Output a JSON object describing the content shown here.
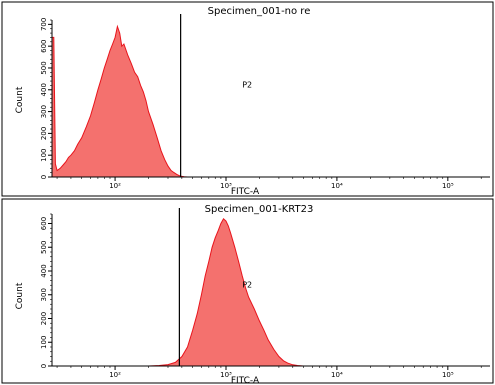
{
  "chart_data": [
    {
      "type": "area",
      "title": "Specimen_001-no re",
      "xlabel": "FITC-A",
      "ylabel": "Count",
      "xscale": "log",
      "xlim": [
        27,
        240000
      ],
      "ylim": [
        0,
        720
      ],
      "x_ticks": [
        {
          "value": 100,
          "label": "10²"
        },
        {
          "value": 1000,
          "label": "10³"
        },
        {
          "value": 10000,
          "label": "10⁴"
        },
        {
          "value": 100000,
          "label": "10⁵"
        }
      ],
      "y_ticks": [
        {
          "value": 0,
          "label": "0"
        },
        {
          "value": 100,
          "label": "100"
        },
        {
          "value": 200,
          "label": "200"
        },
        {
          "value": 300,
          "label": "300"
        },
        {
          "value": 400,
          "label": "400"
        },
        {
          "value": 500,
          "label": "500"
        },
        {
          "value": 600,
          "label": "600"
        },
        {
          "value": 700,
          "label": "700"
        }
      ],
      "gate": {
        "label": "P2",
        "x_start": 390,
        "label_x": 1400,
        "label_y": 410
      },
      "fill_color": "#f4716e",
      "edge_color": "#e8141c",
      "series": [
        {
          "x": [
            27,
            28,
            29,
            30,
            32,
            34,
            36,
            38,
            40,
            43,
            46,
            50,
            55,
            60,
            65,
            70,
            75,
            80,
            85,
            90,
            95,
            100,
            105,
            110,
            115,
            120,
            130,
            140,
            150,
            160,
            170,
            180,
            190,
            200,
            220,
            240,
            260,
            280,
            300,
            320,
            340,
            360,
            380,
            400,
            420,
            450
          ],
          "y": [
            640,
            640,
            60,
            30,
            40,
            55,
            70,
            90,
            100,
            120,
            150,
            180,
            230,
            280,
            340,
            400,
            450,
            500,
            540,
            580,
            610,
            640,
            690,
            660,
            600,
            610,
            560,
            520,
            480,
            460,
            420,
            390,
            350,
            300,
            240,
            180,
            120,
            80,
            50,
            30,
            20,
            12,
            6,
            3,
            1,
            0
          ]
        }
      ]
    },
    {
      "type": "area",
      "title": "Specimen_001-KRT23",
      "xlabel": "FITC-A",
      "ylabel": "Count",
      "xscale": "log",
      "xlim": [
        27,
        240000
      ],
      "ylim": [
        0,
        640
      ],
      "x_ticks": [
        {
          "value": 100,
          "label": "10²"
        },
        {
          "value": 1000,
          "label": "10³"
        },
        {
          "value": 10000,
          "label": "10⁴"
        },
        {
          "value": 100000,
          "label": "10⁵"
        }
      ],
      "y_ticks": [
        {
          "value": 0,
          "label": "0"
        },
        {
          "value": 100,
          "label": "100"
        },
        {
          "value": 200,
          "label": "200"
        },
        {
          "value": 300,
          "label": "300"
        },
        {
          "value": 400,
          "label": "400"
        },
        {
          "value": 500,
          "label": "500"
        },
        {
          "value": 600,
          "label": "600"
        }
      ],
      "gate": {
        "label": "P2",
        "x_start": 380,
        "label_x": 1400,
        "label_y": 330
      },
      "fill_color": "#f4716e",
      "edge_color": "#e8141c",
      "series": [
        {
          "x": [
            200,
            250,
            300,
            350,
            400,
            450,
            500,
            550,
            600,
            650,
            700,
            750,
            800,
            850,
            900,
            950,
            1000,
            1050,
            1100,
            1200,
            1300,
            1400,
            1500,
            1600,
            1800,
            2000,
            2200,
            2400,
            2700,
            3000,
            3300,
            3600,
            4000,
            4400,
            5000
          ],
          "y": [
            0,
            2,
            6,
            15,
            40,
            80,
            150,
            220,
            300,
            380,
            440,
            500,
            540,
            570,
            600,
            620,
            610,
            590,
            560,
            500,
            440,
            380,
            330,
            290,
            240,
            190,
            150,
            110,
            70,
            40,
            22,
            12,
            5,
            2,
            0
          ]
        }
      ]
    }
  ]
}
